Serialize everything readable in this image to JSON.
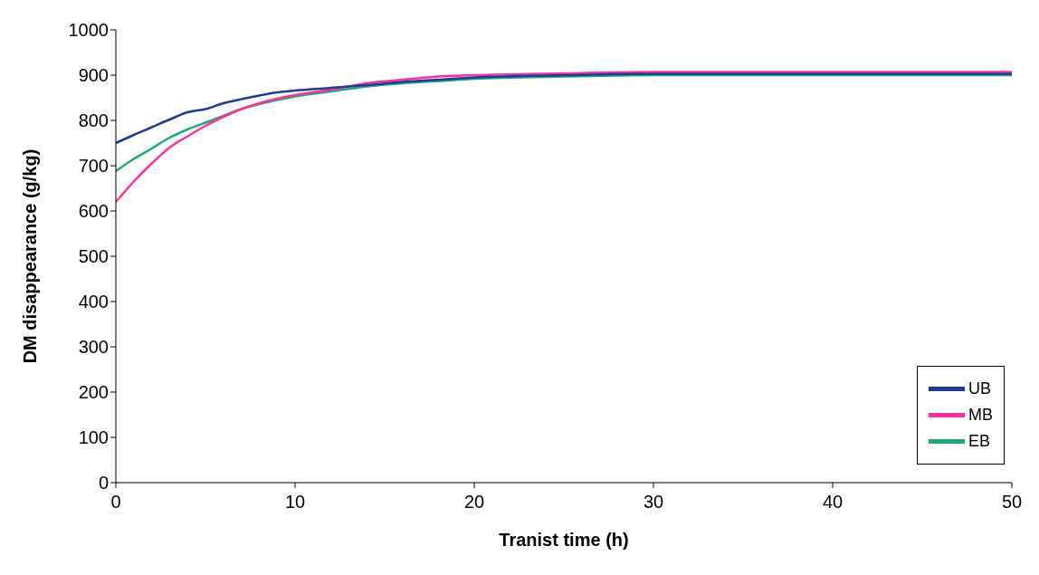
{
  "chart_data": {
    "type": "line",
    "xlabel": "Tranist time (h)",
    "ylabel": "DM disappearance (g/kg)",
    "x": [
      0,
      1,
      2,
      3,
      4,
      5,
      6,
      7,
      8,
      9,
      10,
      12,
      14,
      16,
      18,
      20,
      25,
      30,
      40,
      50
    ],
    "series": [
      {
        "name": "UB",
        "color": "#1f3a93",
        "values": [
          750,
          768,
          785,
          802,
          818,
          825,
          838,
          847,
          855,
          862,
          866,
          872,
          878,
          885,
          890,
          895,
          900,
          903,
          903,
          903
        ]
      },
      {
        "name": "MB",
        "color": "#ff3399",
        "values": [
          620,
          665,
          705,
          740,
          765,
          788,
          808,
          825,
          838,
          848,
          856,
          868,
          882,
          890,
          897,
          900,
          904,
          907,
          907,
          907
        ]
      },
      {
        "name": "EB",
        "color": "#1fa87a",
        "values": [
          688,
          715,
          738,
          762,
          780,
          795,
          810,
          825,
          836,
          845,
          853,
          864,
          875,
          882,
          887,
          892,
          897,
          900,
          900,
          900
        ]
      }
    ],
    "xlim": [
      0,
      50
    ],
    "xticks": [
      0,
      10,
      20,
      30,
      40,
      50
    ],
    "ylim": [
      0,
      1000
    ],
    "yticks": [
      0,
      100,
      200,
      300,
      400,
      500,
      600,
      700,
      800,
      900,
      1000
    ],
    "grid": false,
    "legend": "bottom right",
    "marker": "none",
    "line_style": "solid"
  }
}
